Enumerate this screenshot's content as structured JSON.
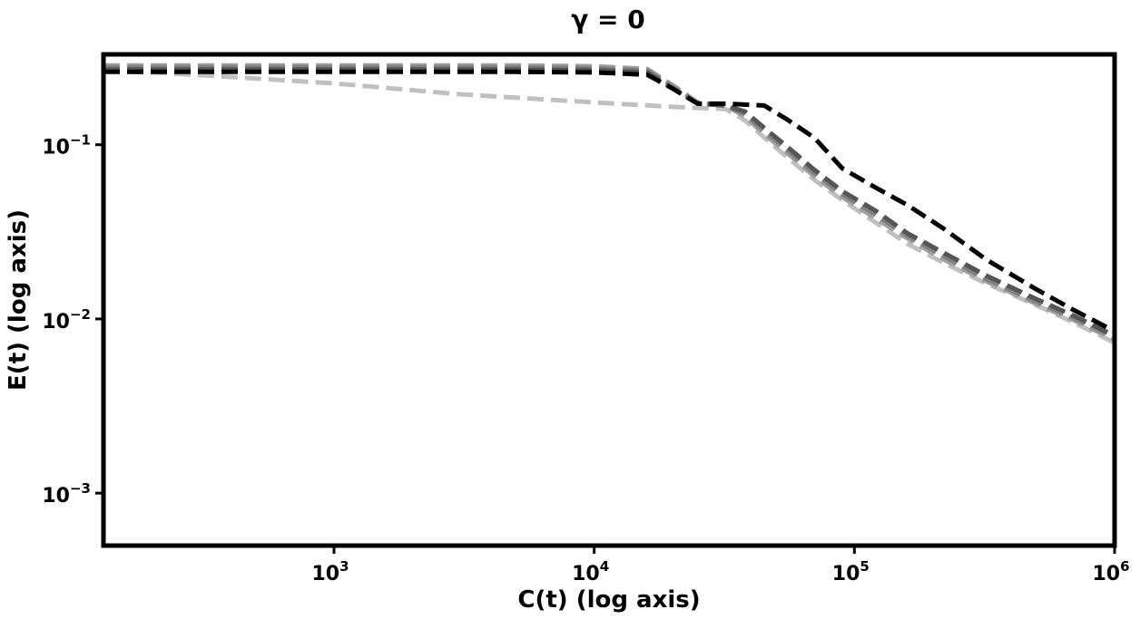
{
  "chart_data": {
    "type": "line",
    "title": "γ = 0",
    "xlabel": "C(t) (log axis)",
    "ylabel": "E(t) (log axis)",
    "xscale": "log",
    "yscale": "log",
    "xlim": [
      130,
      1000000
    ],
    "ylim": [
      0.0005,
      0.33
    ],
    "grid": false,
    "legend": "none",
    "x_ticks": [
      {
        "value": 1000,
        "base": "10",
        "exp": "3"
      },
      {
        "value": 10000,
        "base": "10",
        "exp": "4"
      },
      {
        "value": 100000,
        "base": "10",
        "exp": "5"
      },
      {
        "value": 1000000,
        "base": "10",
        "exp": "6"
      }
    ],
    "y_ticks": [
      {
        "value": 0.1,
        "base": "10",
        "exp": "−1"
      },
      {
        "value": 0.01,
        "base": "10",
        "exp": "−2"
      },
      {
        "value": 0.001,
        "base": "10",
        "exp": "−3"
      }
    ],
    "series": [
      {
        "color": "#c0c0c0",
        "x": [
          130,
          200,
          400,
          1000,
          3000,
          10000,
          20000,
          32000,
          38000,
          45000,
          55000,
          70000,
          90000,
          120000,
          160000,
          220000,
          320000,
          500000,
          700000,
          1000000
        ],
        "y": [
          0.265,
          0.26,
          0.245,
          0.225,
          0.195,
          0.175,
          0.165,
          0.16,
          0.138,
          0.11,
          0.085,
          0.063,
          0.048,
          0.036,
          0.027,
          0.021,
          0.016,
          0.012,
          0.0095,
          0.0073
        ]
      },
      {
        "color": "#a0a0a0",
        "x": [
          130,
          1000,
          5000,
          10000,
          16000,
          20000,
          25000,
          32000,
          38000,
          45000,
          55000,
          70000,
          90000,
          120000,
          160000,
          220000,
          320000,
          500000,
          700000,
          1000000
        ],
        "y": [
          0.285,
          0.285,
          0.285,
          0.282,
          0.272,
          0.22,
          0.175,
          0.168,
          0.145,
          0.115,
          0.09,
          0.066,
          0.05,
          0.038,
          0.029,
          0.022,
          0.0165,
          0.0122,
          0.0098,
          0.0076
        ]
      },
      {
        "color": "#808080",
        "x": [
          130,
          1000,
          5000,
          10000,
          16000,
          20000,
          25000,
          32000,
          38000,
          45000,
          55000,
          70000,
          90000,
          120000,
          160000,
          220000,
          320000,
          500000,
          700000,
          1000000
        ],
        "y": [
          0.278,
          0.278,
          0.278,
          0.275,
          0.266,
          0.215,
          0.173,
          0.168,
          0.15,
          0.12,
          0.094,
          0.069,
          0.052,
          0.04,
          0.03,
          0.023,
          0.017,
          0.0126,
          0.0101,
          0.0078
        ]
      },
      {
        "color": "#555555",
        "x": [
          130,
          1000,
          5000,
          10000,
          16000,
          20000,
          25000,
          32000,
          38000,
          45000,
          55000,
          70000,
          90000,
          120000,
          160000,
          220000,
          320000,
          500000,
          700000,
          1000000
        ],
        "y": [
          0.27,
          0.27,
          0.27,
          0.268,
          0.26,
          0.21,
          0.172,
          0.168,
          0.155,
          0.125,
          0.098,
          0.072,
          0.054,
          0.042,
          0.031,
          0.024,
          0.0178,
          0.013,
          0.0104,
          0.008
        ]
      },
      {
        "color": "#000000",
        "x": [
          130,
          1000,
          5000,
          10000,
          16000,
          20000,
          25000,
          32000,
          45000,
          55000,
          70000,
          90000,
          120000,
          160000,
          220000,
          320000,
          500000,
          700000,
          1000000
        ],
        "y": [
          0.262,
          0.262,
          0.262,
          0.26,
          0.252,
          0.21,
          0.172,
          0.172,
          0.168,
          0.14,
          0.11,
          0.073,
          0.057,
          0.045,
          0.033,
          0.022,
          0.0148,
          0.0112,
          0.0085
        ]
      }
    ]
  }
}
